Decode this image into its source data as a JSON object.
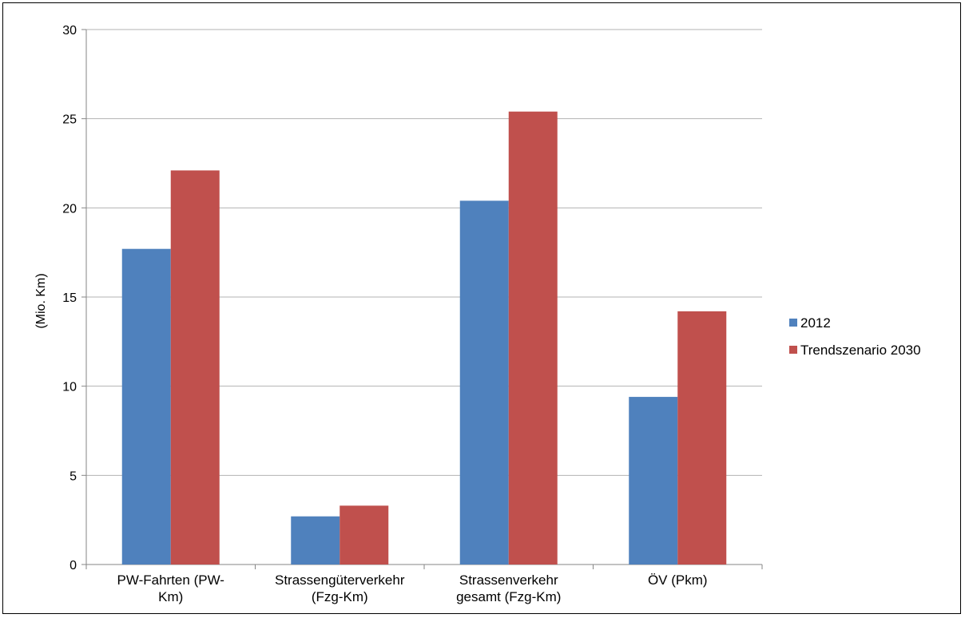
{
  "chart_data": {
    "type": "bar",
    "title": "",
    "xlabel": "",
    "ylabel": "(Mio. Km)",
    "ylim": [
      0,
      30
    ],
    "yticks": [
      0,
      5,
      10,
      15,
      20,
      25,
      30
    ],
    "grid": true,
    "legend_position": "right",
    "categories": [
      [
        "PW-Fahrten (PW-",
        "Km)"
      ],
      [
        "Strassengüterverkehr",
        "(Fzg-Km)"
      ],
      [
        "Strassenverkehr",
        "gesamt (Fzg-Km)"
      ],
      [
        "ÖV (Pkm)"
      ]
    ],
    "series": [
      {
        "name": "2012",
        "color": "#4f81bd",
        "values": [
          17.7,
          2.7,
          20.4,
          9.4
        ]
      },
      {
        "name": "Trendszenario 2030",
        "color": "#c0504d",
        "values": [
          22.1,
          3.3,
          25.4,
          14.2
        ]
      }
    ]
  }
}
